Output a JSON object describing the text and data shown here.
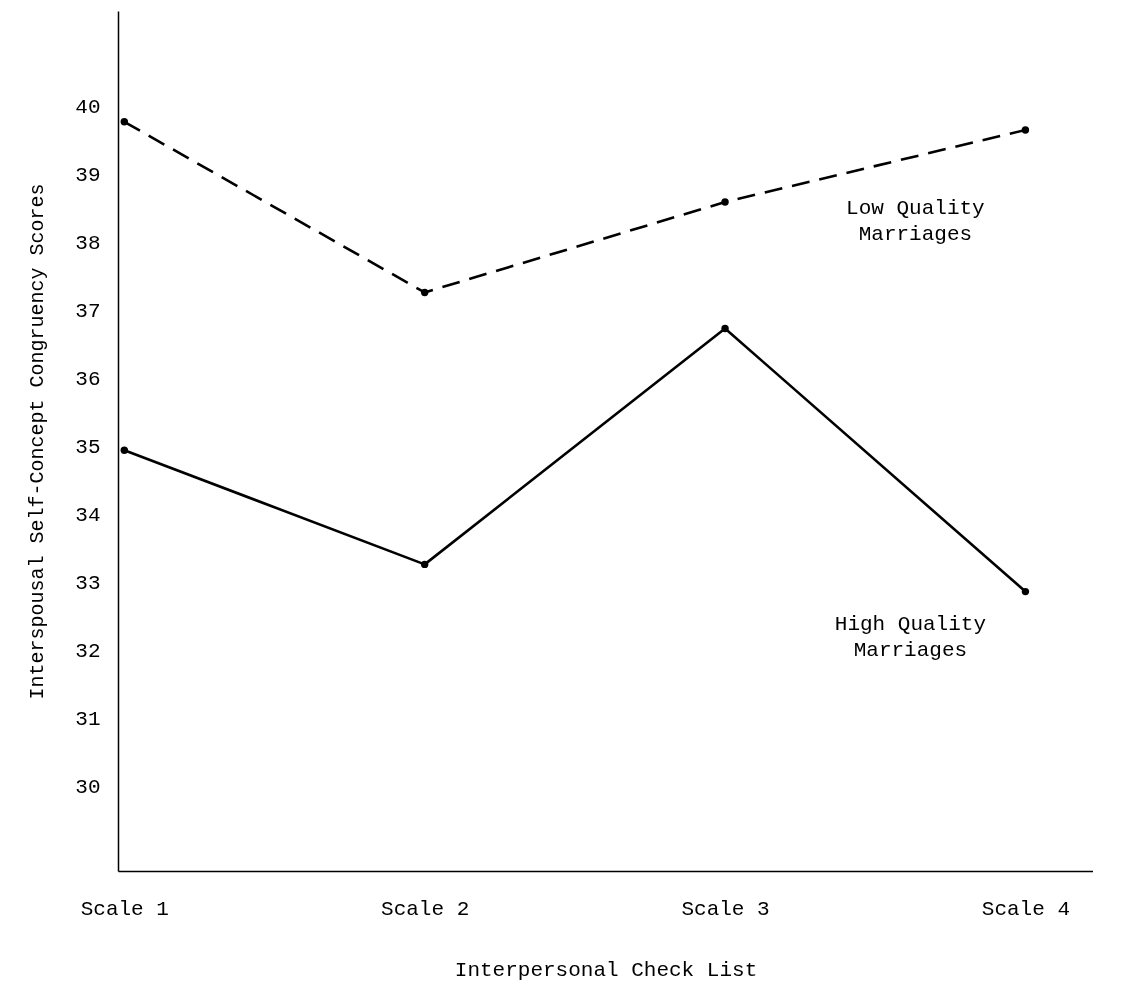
{
  "chart_data": {
    "type": "line",
    "xlabel": "Interpersonal Check List",
    "ylabel": "Interspousal Self-Concept Congruency Scores",
    "categories": [
      "Scale 1",
      "Scale 2",
      "Scale 3",
      "Scale 4"
    ],
    "series": [
      {
        "name": "Low Quality Marriages",
        "color": "#000000",
        "line_style": "dashed",
        "values": [
          39.77,
          37.26,
          38.59,
          39.65
        ]
      },
      {
        "name": "High Quality Marriages",
        "color": "#000000",
        "line_style": "solid",
        "values": [
          34.94,
          33.26,
          36.73,
          32.86
        ]
      }
    ],
    "ylim": [
      28.75,
      41.4
    ],
    "yticks": [
      30,
      31,
      32,
      33,
      34,
      35,
      36,
      37,
      38,
      39,
      40
    ],
    "grid": false,
    "legend": false,
    "marker": "circle"
  }
}
